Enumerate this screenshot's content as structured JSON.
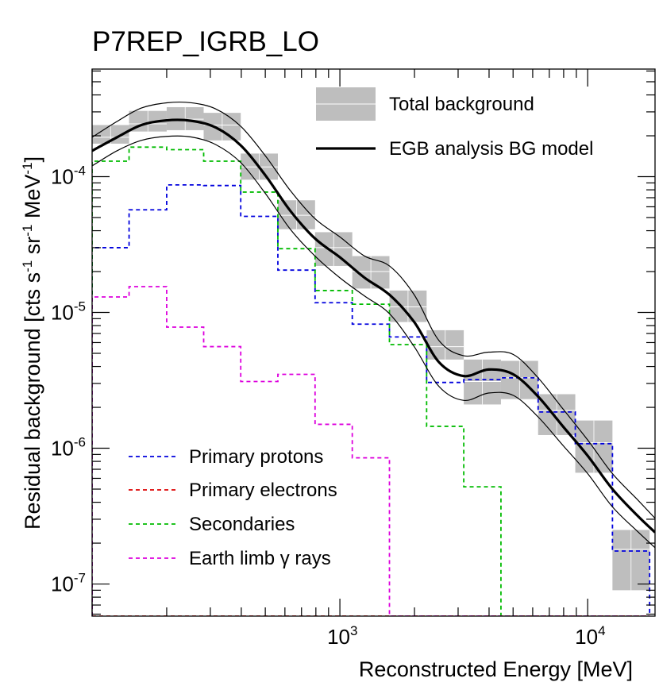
{
  "chart_data": {
    "type": "step",
    "title": "P7REP_IGRB_LO",
    "xlabel": "Reconstructed Energy [MeV]",
    "ylabel": {
      "prefix": "Residual background [cts s",
      "s_exp": "-1",
      "mid": " sr",
      "sr_exp": "-1",
      "unit": " MeV",
      "mev_exp": "-1",
      "suffix": "]"
    },
    "xscale": "log",
    "yscale": "log",
    "xlim": [
      100,
      18700
    ],
    "ylim": [
      5.8e-08,
      0.00062
    ],
    "x_ticks": [
      {
        "value": 1000,
        "base": "10",
        "exp": "3"
      },
      {
        "value": 10000,
        "base": "10",
        "exp": "4"
      }
    ],
    "y_ticks": [
      {
        "value": 1e-07,
        "base": "10",
        "exp": "-7"
      },
      {
        "value": 1e-06,
        "base": "10",
        "exp": "-6"
      },
      {
        "value": 1e-05,
        "base": "10",
        "exp": "-5"
      },
      {
        "value": 0.0001,
        "base": "10",
        "exp": "-4"
      }
    ],
    "bin_edges": [
      100,
      141,
      200,
      282,
      398,
      562,
      794,
      1122,
      1585,
      2239,
      3162,
      4467,
      6310,
      8913,
      12589,
      17783
    ],
    "total_background": {
      "label": "Total background",
      "color": "#bebebe",
      "bins": [
        {
          "lo": 0.000175,
          "hi": 0.00024
        },
        {
          "lo": 0.000215,
          "hi": 0.000305
        },
        {
          "lo": 0.00022,
          "hi": 0.000325
        },
        {
          "lo": 0.000185,
          "hi": 0.000295
        },
        {
          "lo": 9.5e-05,
          "hi": 0.000148
        },
        {
          "lo": 4.1e-05,
          "hi": 6.7e-05
        },
        {
          "lo": 2.2e-05,
          "hi": 3.9e-05
        },
        {
          "lo": 1.5e-05,
          "hi": 2.6e-05
        },
        {
          "lo": 8.5e-06,
          "hi": 1.45e-05
        },
        {
          "lo": 4.5e-06,
          "hi": 7.4e-06
        },
        {
          "lo": 2.1e-06,
          "hi": 4.5e-06
        },
        {
          "lo": 2.3e-06,
          "hi": 4.4e-06
        },
        {
          "lo": 1.25e-06,
          "hi": 2.5e-06
        },
        {
          "lo": 6.6e-07,
          "hi": 1.6e-06
        },
        {
          "lo": 9e-08,
          "hi": 2.5e-07
        }
      ],
      "center_lines": [
        0.000195,
        0.000245,
        0.000265,
        0.00024,
        0.000118,
        5.2e-05,
        3e-05,
        2e-05,
        1.1e-05,
        5.6e-06,
        3.1e-06,
        3.3e-06,
        1.9e-06,
        1.1e-06,
        1.8e-07
      ]
    },
    "egb_model": {
      "label": "EGB analysis BG model",
      "color": "#000000",
      "x": [
        100,
        126,
        158,
        200,
        251,
        316,
        398,
        501,
        631,
        794,
        1000,
        1259,
        1585,
        1995,
        2512,
        3162,
        3981,
        5012,
        6310,
        7943,
        10000,
        12589,
        15849,
        18700
      ],
      "y": [
        0.000155,
        0.000195,
        0.00024,
        0.00026,
        0.000258,
        0.00023,
        0.00017,
        0.000102,
        5.6e-05,
        3.5e-05,
        2.55e-05,
        1.8e-05,
        1.35e-05,
        8.5e-06,
        4.3e-06,
        3.4e-06,
        3.8e-06,
        3.5e-06,
        2.4e-06,
        1.45e-06,
        8.8e-07,
        5e-07,
        3.2e-07,
        2.4e-07
      ],
      "upper": [
        0.000195,
        0.000255,
        0.00032,
        0.00035,
        0.00035,
        0.000315,
        0.000235,
        0.000142,
        7.9e-05,
        4.9e-05,
        3.6e-05,
        2.6e-05,
        2.2e-05,
        1.35e-05,
        6.2e-06,
        4.8e-06,
        5.1e-06,
        4.9e-06,
        3.3e-06,
        1.95e-06,
        1.15e-06,
        6.5e-07,
        4.2e-07,
        3.05e-07
      ],
      "lower": [
        0.00012,
        0.000155,
        0.000185,
        0.000198,
        0.000196,
        0.000172,
        0.000127,
        7.5e-05,
        4.1e-05,
        2.6e-05,
        1.8e-05,
        1.32e-05,
        9.8e-06,
        5.6e-06,
        2.85e-06,
        2.25e-06,
        2.55e-06,
        2.45e-06,
        1.7e-06,
        1.05e-06,
        6.5e-07,
        3.7e-07,
        2.45e-07,
        1.85e-07
      ]
    },
    "series": [
      {
        "name": "Primary protons",
        "color": "#0000dd",
        "values": [
          3e-05,
          5.7e-05,
          8.7e-05,
          8.6e-05,
          5.1e-05,
          2.05e-05,
          1.18e-05,
          8.2e-06,
          6.6e-06,
          3.05e-06,
          3.2e-06,
          3.3e-06,
          1.85e-06,
          1.08e-06,
          1.75e-07
        ]
      },
      {
        "name": "Primary electrons",
        "color": "#dd0000",
        "values": [
          5.8e-08,
          5.8e-08,
          5.8e-08,
          5.8e-08,
          5.8e-08,
          5.8e-08,
          5.8e-08,
          5.8e-08,
          5.8e-08,
          5.8e-08,
          5.8e-08,
          5.8e-08,
          5.8e-08,
          5.8e-08,
          5.8e-08
        ]
      },
      {
        "name": "Secondaries",
        "color": "#00bb00",
        "values": [
          0.00013,
          0.000165,
          0.000158,
          0.00013,
          7.7e-05,
          2.95e-05,
          1.45e-05,
          1.15e-05,
          5.8e-06,
          1.45e-06,
          5.2e-07,
          5.8e-08,
          5.8e-08,
          5.8e-08,
          5.8e-08
        ]
      },
      {
        "name": "Earth limb ",
        "name_symbol": "γ",
        "name_suffix": " rays",
        "color": "#dd00dd",
        "values": [
          1.3e-05,
          1.55e-05,
          7.8e-06,
          5.6e-06,
          3.1e-06,
          3.5e-06,
          1.5e-06,
          8.5e-07,
          5.8e-08,
          5.8e-08,
          5.8e-08,
          5.8e-08,
          5.8e-08,
          5.8e-08,
          5.8e-08
        ]
      }
    ]
  }
}
